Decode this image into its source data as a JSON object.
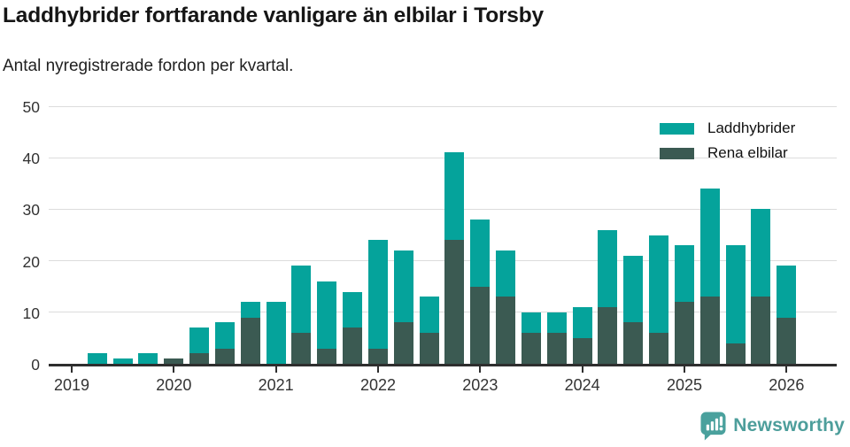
{
  "header": {
    "title": "Laddhybrider fortfarande vanligare än elbilar i Torsby",
    "subtitle": "Antal nyregistrerade fordon per kvartal."
  },
  "chart_data": {
    "type": "bar",
    "stacked": true,
    "title": "Laddhybrider fortfarande vanligare än elbilar i Torsby",
    "subtitle": "Antal nyregistrerade fordon per kvartal.",
    "xlabel": "",
    "ylabel": "",
    "ylim": [
      0,
      50
    ],
    "yticks": [
      0,
      10,
      20,
      30,
      40,
      50
    ],
    "grid": "horizontal",
    "x": [
      "2019-Q1",
      "2019-Q2",
      "2019-Q3",
      "2019-Q4",
      "2020-Q1",
      "2020-Q2",
      "2020-Q3",
      "2020-Q4",
      "2021-Q1",
      "2021-Q2",
      "2021-Q3",
      "2021-Q4",
      "2022-Q1",
      "2022-Q2",
      "2022-Q3",
      "2022-Q4",
      "2023-Q1",
      "2023-Q2",
      "2023-Q3",
      "2023-Q4",
      "2024-Q1",
      "2024-Q2",
      "2024-Q3",
      "2024-Q4",
      "2025-Q1",
      "2025-Q2",
      "2025-Q3",
      "2025-Q4",
      "2026-Q1"
    ],
    "year_tick_labels": [
      "2019",
      "2020",
      "2021",
      "2022",
      "2023",
      "2024",
      "2025",
      "2026"
    ],
    "series": [
      {
        "name": "Laddhybrider",
        "color": "#05a39b",
        "values": [
          0,
          2,
          1,
          2,
          0,
          5,
          5,
          3,
          12,
          13,
          13,
          7,
          21,
          14,
          7,
          17,
          13,
          9,
          4,
          4,
          6,
          15,
          13,
          19,
          11,
          21,
          19,
          17,
          10
        ]
      },
      {
        "name": "Rena elbilar",
        "color": "#3b5a52",
        "values": [
          0,
          0,
          0,
          0,
          1,
          2,
          3,
          9,
          0,
          6,
          3,
          7,
          3,
          8,
          6,
          24,
          15,
          13,
          6,
          6,
          5,
          11,
          8,
          6,
          12,
          13,
          4,
          13,
          9
        ]
      }
    ],
    "totals": [
      0,
      2,
      1,
      2,
      1,
      7,
      8,
      12,
      12,
      19,
      16,
      14,
      24,
      22,
      13,
      41,
      28,
      22,
      10,
      10,
      11,
      26,
      21,
      25,
      23,
      34,
      23,
      30,
      19
    ],
    "stack_order_bottom_to_top": [
      "Rena elbilar",
      "Laddhybrider"
    ],
    "legend": {
      "position": "top-right",
      "entries": [
        "Laddhybrider",
        "Rena elbilar"
      ]
    }
  },
  "footer": {
    "brand": "Newsworthy",
    "brand_color": "#4d9e9b",
    "icon": "newsworthy-logo-icon"
  }
}
